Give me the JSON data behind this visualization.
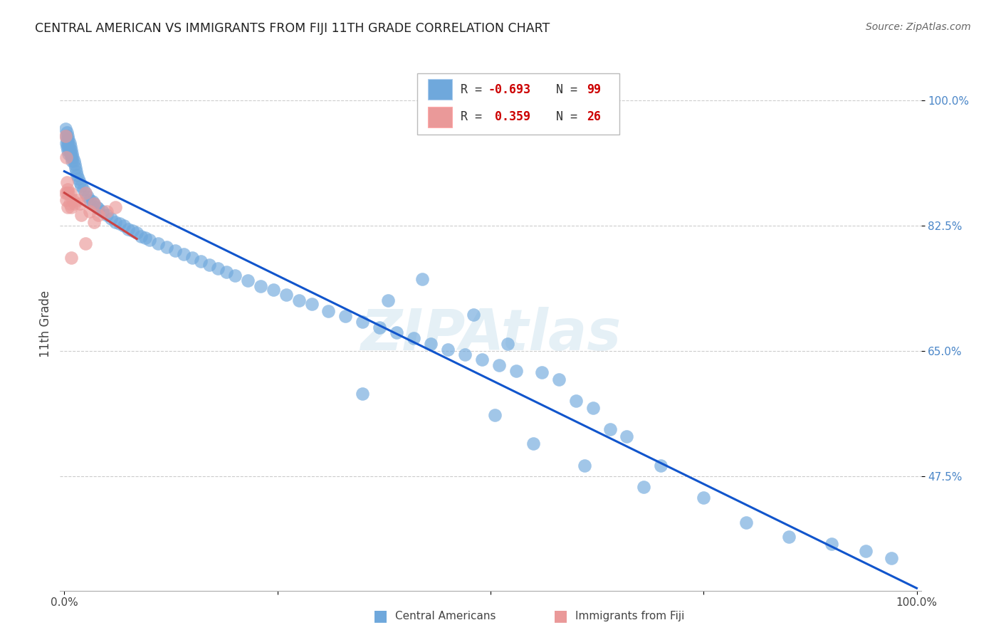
{
  "title": "CENTRAL AMERICAN VS IMMIGRANTS FROM FIJI 11TH GRADE CORRELATION CHART",
  "source": "Source: ZipAtlas.com",
  "ylabel": "11th Grade",
  "blue_color": "#6fa8dc",
  "pink_color": "#ea9999",
  "blue_line_color": "#1155cc",
  "pink_line_color": "#cc4444",
  "r_blue": -0.693,
  "n_blue": 99,
  "r_pink": 0.359,
  "n_pink": 26,
  "legend_label1": "Central Americans",
  "legend_label2": "Immigrants from Fiji",
  "watermark": "ZIPAtlas",
  "blue_x": [
    0.001,
    0.002,
    0.002,
    0.003,
    0.003,
    0.003,
    0.004,
    0.004,
    0.004,
    0.005,
    0.005,
    0.005,
    0.006,
    0.006,
    0.007,
    0.007,
    0.008,
    0.008,
    0.009,
    0.009,
    0.01,
    0.011,
    0.012,
    0.013,
    0.014,
    0.015,
    0.016,
    0.018,
    0.02,
    0.022,
    0.025,
    0.027,
    0.03,
    0.033,
    0.035,
    0.038,
    0.04,
    0.045,
    0.05,
    0.055,
    0.06,
    0.065,
    0.07,
    0.075,
    0.08,
    0.085,
    0.09,
    0.095,
    0.1,
    0.11,
    0.12,
    0.13,
    0.14,
    0.15,
    0.16,
    0.17,
    0.18,
    0.19,
    0.2,
    0.215,
    0.23,
    0.245,
    0.26,
    0.275,
    0.29,
    0.31,
    0.33,
    0.35,
    0.37,
    0.39,
    0.41,
    0.43,
    0.45,
    0.47,
    0.49,
    0.51,
    0.53,
    0.48,
    0.52,
    0.56,
    0.6,
    0.64,
    0.42,
    0.38,
    0.35,
    0.58,
    0.62,
    0.66,
    0.7,
    0.75,
    0.8,
    0.85,
    0.9,
    0.94,
    0.97,
    0.505,
    0.55,
    0.61,
    0.68
  ],
  "blue_y": [
    0.96,
    0.95,
    0.94,
    0.955,
    0.945,
    0.935,
    0.95,
    0.94,
    0.93,
    0.945,
    0.935,
    0.925,
    0.94,
    0.93,
    0.935,
    0.925,
    0.93,
    0.92,
    0.925,
    0.915,
    0.92,
    0.915,
    0.91,
    0.905,
    0.9,
    0.895,
    0.89,
    0.885,
    0.88,
    0.875,
    0.87,
    0.865,
    0.86,
    0.858,
    0.855,
    0.85,
    0.848,
    0.845,
    0.84,
    0.835,
    0.83,
    0.828,
    0.825,
    0.82,
    0.818,
    0.815,
    0.81,
    0.808,
    0.805,
    0.8,
    0.795,
    0.79,
    0.785,
    0.78,
    0.775,
    0.77,
    0.765,
    0.76,
    0.755,
    0.748,
    0.74,
    0.735,
    0.728,
    0.72,
    0.715,
    0.705,
    0.698,
    0.69,
    0.682,
    0.675,
    0.668,
    0.66,
    0.652,
    0.645,
    0.638,
    0.63,
    0.622,
    0.7,
    0.66,
    0.62,
    0.58,
    0.54,
    0.75,
    0.72,
    0.59,
    0.61,
    0.57,
    0.53,
    0.49,
    0.445,
    0.41,
    0.39,
    0.38,
    0.37,
    0.36,
    0.56,
    0.52,
    0.49,
    0.46
  ],
  "pink_x": [
    0.001,
    0.001,
    0.002,
    0.002,
    0.003,
    0.003,
    0.004,
    0.004,
    0.005,
    0.006,
    0.007,
    0.008,
    0.01,
    0.012,
    0.015,
    0.018,
    0.02,
    0.025,
    0.03,
    0.035,
    0.04,
    0.05,
    0.06,
    0.025,
    0.035,
    0.008
  ],
  "pink_y": [
    0.87,
    0.95,
    0.86,
    0.92,
    0.885,
    0.87,
    0.875,
    0.85,
    0.87,
    0.855,
    0.87,
    0.85,
    0.86,
    0.855,
    0.86,
    0.855,
    0.84,
    0.87,
    0.845,
    0.855,
    0.84,
    0.845,
    0.85,
    0.8,
    0.83,
    0.78
  ]
}
